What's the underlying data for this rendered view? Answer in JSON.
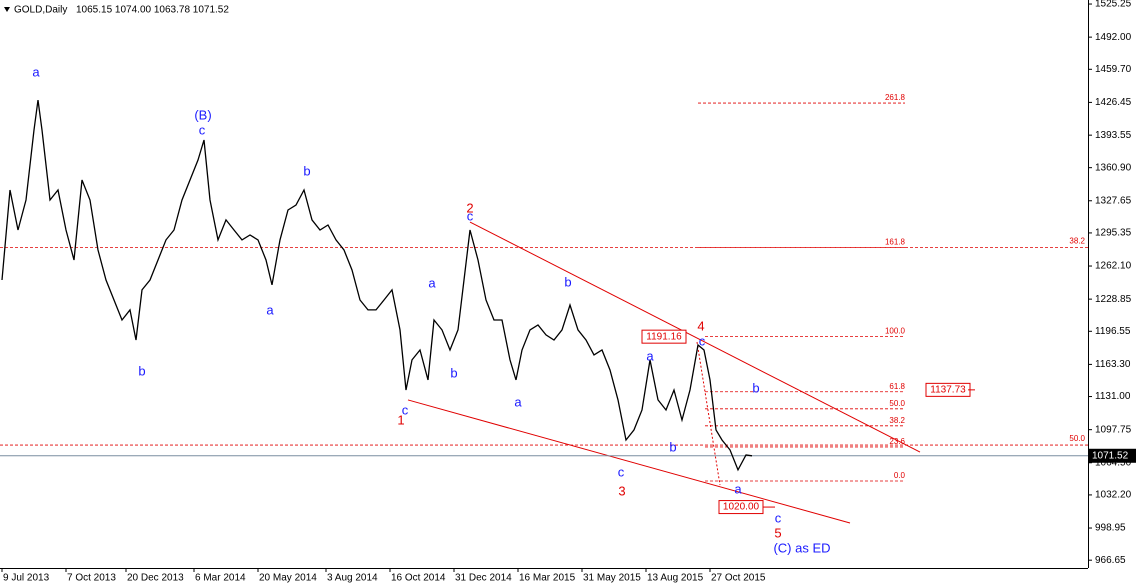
{
  "chart_data": {
    "type": "line",
    "title": "GOLD,Daily",
    "subtitle": "1065.15 1074.00 1063.78 1071.52",
    "xlim": [
      -0.5,
      271.5
    ],
    "ylim": [
      958.8,
      1529.3
    ],
    "xticks": [
      {
        "value": 0,
        "label": "9 Jul 2013"
      },
      {
        "value": 16,
        "label": "7 Oct 2013"
      },
      {
        "value": 31,
        "label": "20 Dec 2013"
      },
      {
        "value": 48,
        "label": "6 Mar 2014"
      },
      {
        "value": 64,
        "label": "20 May 2014"
      },
      {
        "value": 81,
        "label": "3 Aug 2014"
      },
      {
        "value": 97,
        "label": "16 Oct 2014"
      },
      {
        "value": 113,
        "label": "31 Dec 2014"
      },
      {
        "value": 129,
        "label": "16 Mar 2015"
      },
      {
        "value": 145,
        "label": "31 May 2015"
      },
      {
        "value": 161,
        "label": "13 Aug 2015"
      },
      {
        "value": 177,
        "label": "27 Oct 2015"
      }
    ],
    "yticks": [
      {
        "value": 1525.25,
        "label": "1525.25"
      },
      {
        "value": 1492.0,
        "label": "1492.00"
      },
      {
        "value": 1459.7,
        "label": "1459.70"
      },
      {
        "value": 1426.45,
        "label": "1426.45"
      },
      {
        "value": 1393.55,
        "label": "1393.55"
      },
      {
        "value": 1360.9,
        "label": "1360.90"
      },
      {
        "value": 1327.65,
        "label": "1327.65"
      },
      {
        "value": 1295.35,
        "label": "1295.35"
      },
      {
        "value": 1262.1,
        "label": "1262.10"
      },
      {
        "value": 1228.85,
        "label": "1228.85"
      },
      {
        "value": 1196.55,
        "label": "1196.55"
      },
      {
        "value": 1163.3,
        "label": "1163.30"
      },
      {
        "value": 1131.0,
        "label": "1131.00"
      },
      {
        "value": 1097.75,
        "label": "1097.75"
      },
      {
        "value": 1064.5,
        "label": "1064.50"
      },
      {
        "value": 1032.2,
        "label": "1032.20"
      },
      {
        "value": 998.95,
        "label": "998.95"
      },
      {
        "value": 966.65,
        "label": "966.65"
      }
    ],
    "series": [
      {
        "name": "GOLD",
        "color": "#000000",
        "x": [
          0,
          2,
          4,
          6,
          8,
          9,
          10,
          12,
          14,
          16,
          18,
          20,
          22,
          24,
          26,
          28,
          30,
          32,
          33.5,
          35,
          37,
          39,
          41,
          43,
          45,
          47,
          49,
          50.5,
          52,
          54,
          56,
          58,
          60,
          62,
          64,
          66,
          67.5,
          69.5,
          71.5,
          73.5,
          75.5,
          77.5,
          79.5,
          81.5,
          83.5,
          85.5,
          87.5,
          89.5,
          91.5,
          93.5,
          95.5,
          97.5,
          99.5,
          101,
          102.5,
          104.5,
          106.5,
          108,
          110,
          112,
          114,
          115.5,
          117,
          119,
          121,
          123,
          125,
          127,
          128.5,
          130,
          132,
          134,
          136,
          138,
          140,
          142,
          144,
          146,
          148,
          150,
          152,
          154,
          156,
          158,
          160,
          162,
          164,
          166,
          168,
          170,
          172,
          174,
          175.5,
          177,
          178.5,
          180,
          182,
          184,
          186,
          187.5
        ],
        "values": [
          1248.1,
          1338.5,
          1298.3,
          1328.4,
          1398.7,
          1428.8,
          1398.7,
          1328.4,
          1338.5,
          1298.3,
          1268.2,
          1348.5,
          1328.4,
          1278.2,
          1248.1,
          1228.0,
          1207.9,
          1218.0,
          1187.8,
          1238.1,
          1248.1,
          1268.2,
          1288.3,
          1298.3,
          1328.4,
          1348.5,
          1368.6,
          1388.7,
          1328.4,
          1288.3,
          1308.4,
          1298.3,
          1288.3,
          1293.3,
          1288.3,
          1268.2,
          1243.1,
          1288.3,
          1318.4,
          1323.4,
          1338.5,
          1308.4,
          1298.3,
          1303.3,
          1288.3,
          1278.2,
          1258.1,
          1228.0,
          1218.0,
          1218.0,
          1228.0,
          1238.1,
          1197.9,
          1137.6,
          1167.8,
          1177.8,
          1147.7,
          1207.9,
          1197.9,
          1177.8,
          1197.9,
          1248.1,
          1298.3,
          1268.2,
          1228.0,
          1207.9,
          1207.9,
          1167.8,
          1147.7,
          1177.8,
          1197.9,
          1202.9,
          1192.9,
          1187.8,
          1197.9,
          1223.0,
          1197.9,
          1187.8,
          1172.8,
          1177.8,
          1157.7,
          1127.6,
          1087.4,
          1097.5,
          1117.5,
          1167.8,
          1127.6,
          1117.5,
          1137.6,
          1107.5,
          1137.6,
          1182.8,
          1177.8,
          1147.7,
          1097.5,
          1087.4,
          1077.4,
          1057.3,
          1072.3,
          1071.52
        ]
      }
    ],
    "last_price": {
      "value": 1071.52,
      "label": "1071.52"
    },
    "fib_levels": [
      {
        "value": 1425.8,
        "label": "261.8"
      },
      {
        "value": 1280.8,
        "label": "161.8"
      },
      {
        "value": 1191.2,
        "label": "100.0"
      },
      {
        "value": 1135.8,
        "label": "61.8"
      },
      {
        "value": 1118.7,
        "label": "50.0"
      },
      {
        "value": 1101.6,
        "label": "38.2"
      },
      {
        "value": 1080.4,
        "label": "23.6"
      },
      {
        "value": 1046.2,
        "label": "0.0"
      }
    ],
    "long_levels": [
      {
        "value": 1280.8,
        "label": "38.2"
      },
      {
        "value": 1082.3,
        "label": "50.0"
      }
    ],
    "price_boxes": [
      {
        "value": 1191.16,
        "label": "1191.16"
      },
      {
        "value": 1137.73,
        "label": "1137.73"
      },
      {
        "value": 1020.0,
        "label": "1020.00"
      }
    ],
    "trendlines": [
      {
        "x": [
          117,
          229.5
        ],
        "y": [
          1306.3,
          1075.3
        ]
      },
      {
        "x": [
          101.5,
          212
        ],
        "y": [
          1127.6,
          1004.0
        ]
      }
    ],
    "trend_color": "#e00000",
    "annotations": [
      {
        "text": "a",
        "color": "#1a1aff"
      },
      {
        "text": "(B)",
        "color": "#1a1aff"
      },
      {
        "text": "c",
        "color": "#1a1aff"
      },
      {
        "text": "b",
        "color": "#1a1aff"
      },
      {
        "text": "a",
        "color": "#1a1aff"
      },
      {
        "text": "b",
        "color": "#1a1aff"
      },
      {
        "text": "c",
        "color": "#1a1aff"
      },
      {
        "text": "1",
        "color": "#e00000"
      },
      {
        "text": "a",
        "color": "#1a1aff"
      },
      {
        "text": "b",
        "color": "#1a1aff"
      },
      {
        "text": "2",
        "color": "#e00000"
      },
      {
        "text": "c",
        "color": "#1a1aff"
      },
      {
        "text": "b",
        "color": "#1a1aff"
      },
      {
        "text": "a",
        "color": "#1a1aff"
      },
      {
        "text": "c",
        "color": "#1a1aff"
      },
      {
        "text": "3",
        "color": "#e00000"
      },
      {
        "text": "a",
        "color": "#1a1aff"
      },
      {
        "text": "b",
        "color": "#1a1aff"
      },
      {
        "text": "4",
        "color": "#e00000"
      },
      {
        "text": "c",
        "color": "#1a1aff"
      },
      {
        "text": "b",
        "color": "#1a1aff"
      },
      {
        "text": "a",
        "color": "#1a1aff"
      },
      {
        "text": "c",
        "color": "#1a1aff"
      },
      {
        "text": "5",
        "color": "#e00000"
      },
      {
        "text": "(C) as ED",
        "color": "#1a1aff"
      }
    ]
  }
}
